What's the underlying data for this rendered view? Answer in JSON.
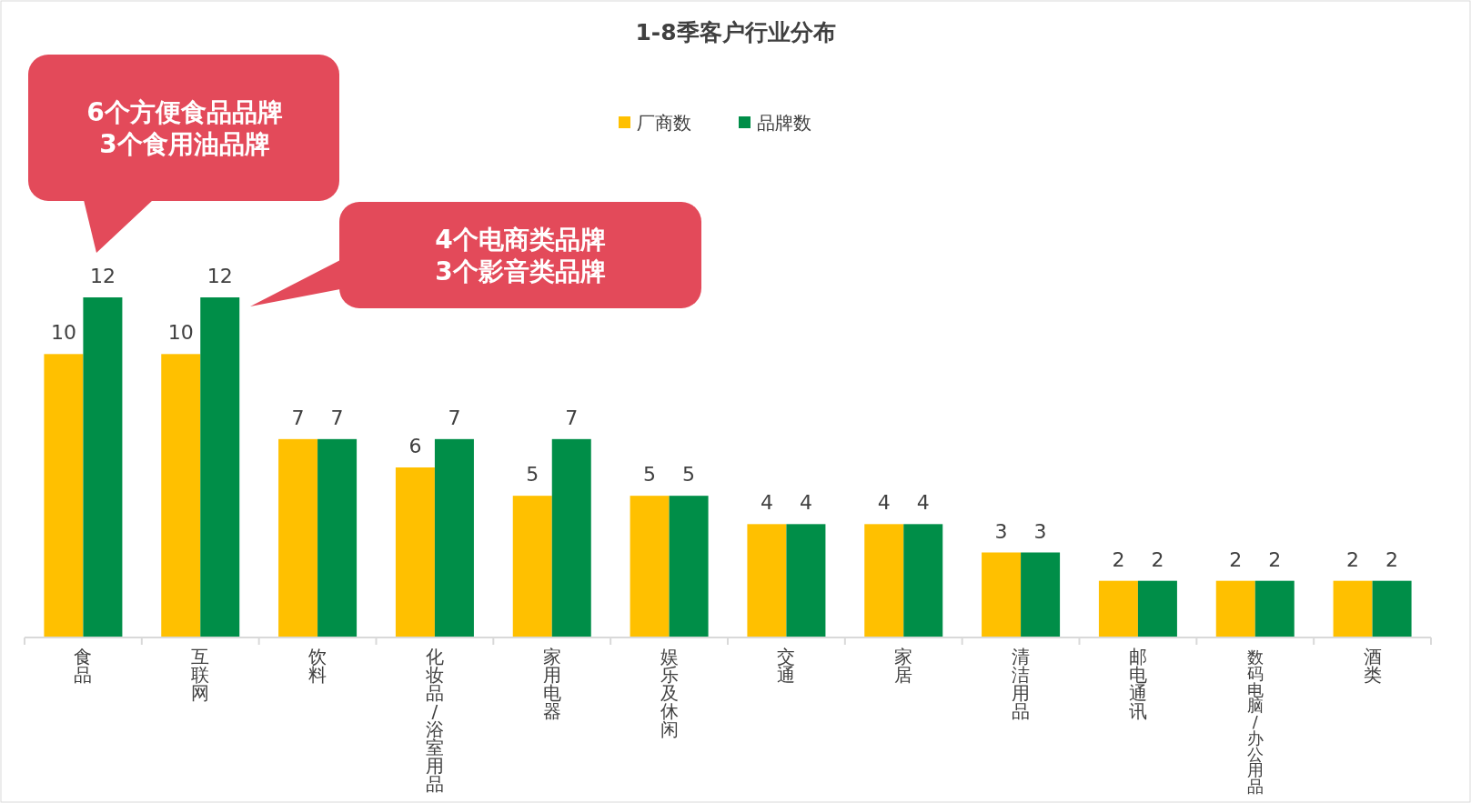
{
  "chart_data": {
    "type": "bar",
    "title": "1-8季客户行业分布",
    "categories": [
      "食品",
      "互联网",
      "饮料",
      "化妆品/浴室用品",
      "家用电器",
      "娱乐及休闲",
      "交通",
      "家居",
      "清洁用品",
      "邮电通讯",
      "数码电脑/办公用品",
      "酒类"
    ],
    "series": [
      {
        "name": "厂商数",
        "color": "#ffc000",
        "values": [
          10,
          10,
          7,
          6,
          5,
          5,
          4,
          4,
          3,
          2,
          2,
          2
        ]
      },
      {
        "name": "品牌数",
        "color": "#008e48",
        "values": [
          12,
          12,
          7,
          7,
          7,
          5,
          4,
          4,
          3,
          2,
          2,
          2
        ]
      }
    ],
    "data_labels": true,
    "legend": "top",
    "annotations": [
      "6个方便食品品牌\n3个食用油品牌",
      "4个电商类品牌\n3个影音类品牌"
    ]
  }
}
